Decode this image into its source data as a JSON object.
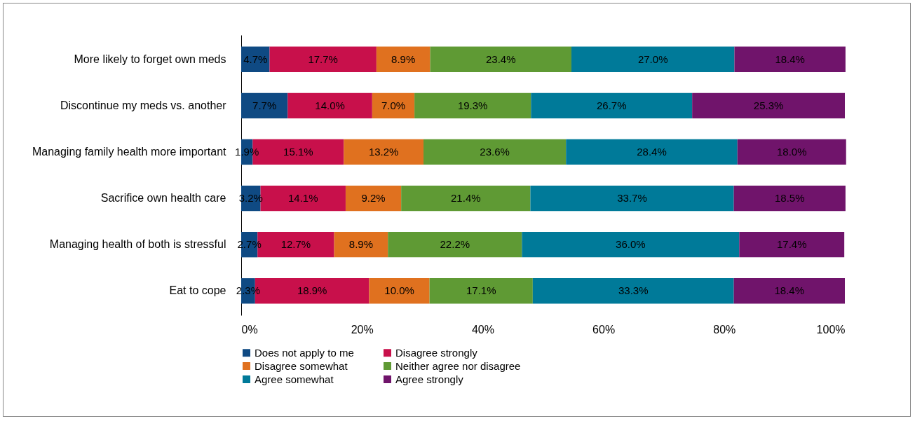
{
  "chart_data": {
    "type": "bar",
    "orientation": "horizontal",
    "stacked": true,
    "categories": [
      "More likely to forget own meds",
      "Discontinue my meds vs. another",
      "Managing family health more important",
      "Sacrifice own health care",
      "Managing health of both is stressful",
      "Eat to cope"
    ],
    "series": [
      {
        "name": "Does not apply to me",
        "color": "#0f4a83",
        "values": [
          4.7,
          7.7,
          1.9,
          3.2,
          2.7,
          2.3
        ],
        "value_labels": [
          "4.7%",
          "7.7%",
          "1.9%",
          "3.2%",
          "2.7%",
          "2.3%"
        ]
      },
      {
        "name": "Disagree strongly",
        "color": "#c8104b",
        "values": [
          17.7,
          14.0,
          15.1,
          14.1,
          12.7,
          18.9
        ],
        "value_labels": [
          "17.7%",
          "14.0%",
          "15.1%",
          "14.1%",
          "12.7%",
          "18.9%"
        ]
      },
      {
        "name": "Disagree somewhat",
        "color": "#e0711f",
        "values": [
          8.9,
          7.0,
          13.2,
          9.2,
          8.9,
          10.0
        ],
        "value_labels": [
          "8.9%",
          "7.0%",
          "13.2%",
          "9.2%",
          "8.9%",
          "10.0%"
        ]
      },
      {
        "name": "Neither agree nor disagree",
        "color": "#5f9a34",
        "values": [
          23.4,
          19.3,
          23.6,
          21.4,
          22.2,
          17.1
        ],
        "value_labels": [
          "23.4%",
          "19.3%",
          "23.6%",
          "21.4%",
          "22.2%",
          "17.1%"
        ]
      },
      {
        "name": "Agree somewhat",
        "color": "#007a99",
        "values": [
          27.0,
          26.7,
          28.4,
          33.7,
          36.0,
          33.3
        ],
        "value_labels": [
          "27.0%",
          "26.7%",
          "28.4%",
          "33.7%",
          "36.0%",
          "33.3%"
        ]
      },
      {
        "name": "Agree strongly",
        "color": "#70146b",
        "values": [
          18.4,
          25.3,
          18.0,
          18.5,
          17.4,
          18.4
        ],
        "value_labels": [
          "18.4%",
          "25.3%",
          "18.0%",
          "18.5%",
          "17.4%",
          "18.4%"
        ]
      }
    ],
    "xlim": [
      0,
      100
    ],
    "xticks": [
      {
        "value": 0,
        "label": "0%"
      },
      {
        "value": 20,
        "label": "20%"
      },
      {
        "value": 40,
        "label": "40%"
      },
      {
        "value": 60,
        "label": "60%"
      },
      {
        "value": 80,
        "label": "80%"
      },
      {
        "value": 100,
        "label": "100%"
      }
    ],
    "grid": false,
    "legend": "bottom"
  }
}
